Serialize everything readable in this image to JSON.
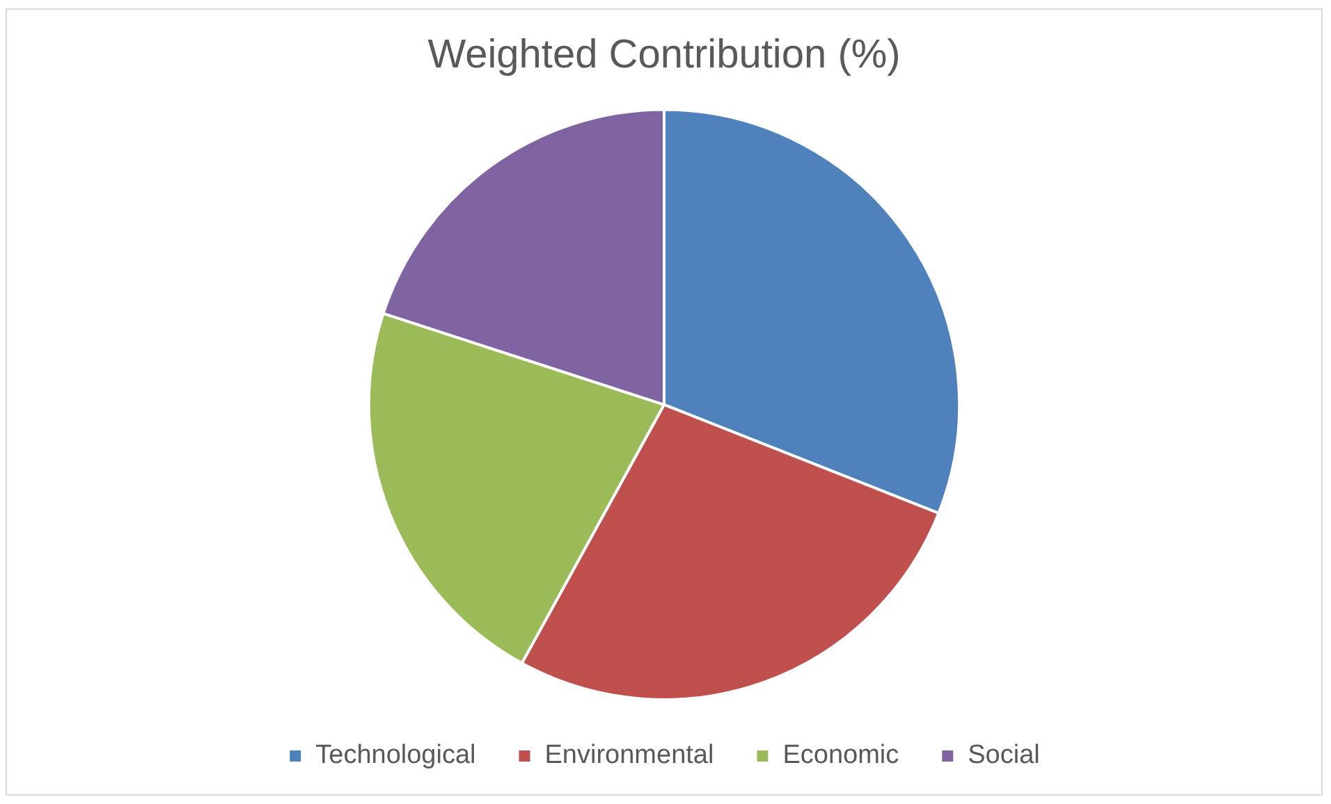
{
  "chart_data": {
    "type": "pie",
    "title": "Weighted Contribution (%)",
    "categories": [
      "Technological",
      "Environmental",
      "Economic",
      "Social"
    ],
    "values": [
      31,
      27,
      22,
      20
    ],
    "colors": [
      "#4f81bd",
      "#c0504d",
      "#9bbb59",
      "#8064a2"
    ],
    "legend": "bottom"
  }
}
